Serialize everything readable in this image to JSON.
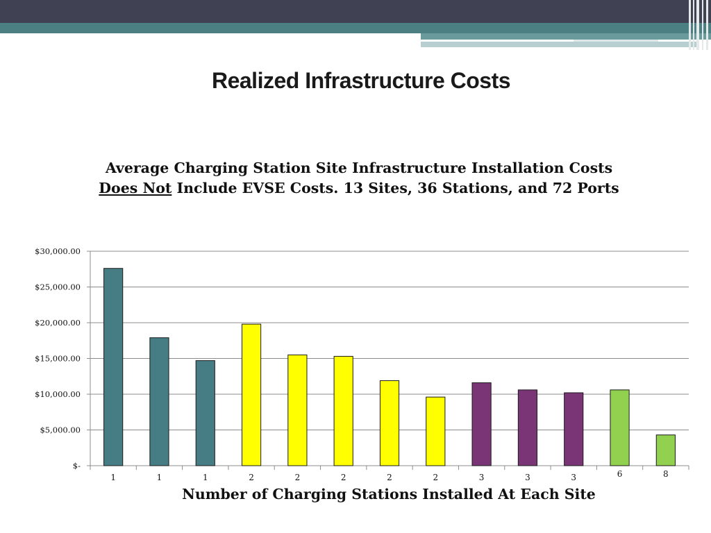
{
  "slide": {
    "title": "Realized Infrastructure Costs"
  },
  "colors": {
    "topbar": "#404253",
    "teal_band": "#4b7f81",
    "grid": "#8c8c8c"
  },
  "chart_data": {
    "type": "bar",
    "title_line1": "Average Charging Station Site Infrastructure Installation Costs",
    "title_line2_underlined": "Does Not",
    "title_line2_rest": " Include EVSE Costs. 13 Sites, 36 Stations, and 72 Ports",
    "xlabel": "Number of Charging Stations Installed At Each Site",
    "ylabel": "",
    "categories": [
      "1",
      "1",
      "1",
      "2",
      "2",
      "2",
      "2",
      "2",
      "3",
      "3",
      "3",
      "6",
      "8"
    ],
    "values": [
      27600,
      17900,
      14700,
      19800,
      15500,
      15300,
      11900,
      9600,
      11600,
      10600,
      10200,
      10600,
      4300
    ],
    "bar_colors": [
      "#467d84",
      "#467d84",
      "#467d84",
      "#ffff00",
      "#ffff00",
      "#ffff00",
      "#ffff00",
      "#ffff00",
      "#7a3577",
      "#7a3577",
      "#7a3577",
      "#92d050",
      "#92d050"
    ],
    "ylim": [
      0,
      30000
    ],
    "yticks": [
      0,
      5000,
      10000,
      15000,
      20000,
      25000,
      30000
    ],
    "ytick_labels": [
      "$-",
      "$5,000.00",
      "$10,000.00",
      "$15,000.00",
      "$20,000.00",
      "$25,000.00",
      "$30,000.00"
    ],
    "grid": true,
    "legend": "none"
  }
}
